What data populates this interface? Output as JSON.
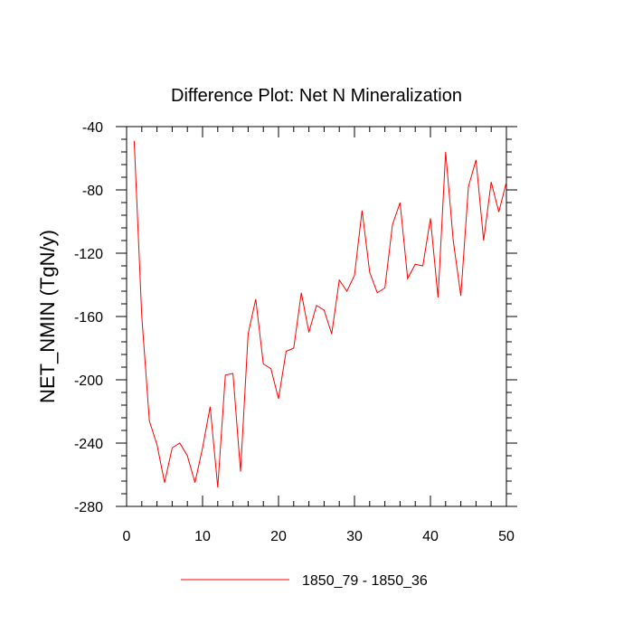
{
  "chart_data": {
    "type": "line",
    "title": "Difference Plot: Net N Mineralization",
    "xlabel": "",
    "ylabel": "NET_NMIN  (TgN/y)",
    "xlim": [
      0,
      50
    ],
    "ylim": [
      -280,
      -40
    ],
    "x_ticks": [
      0,
      10,
      20,
      30,
      40,
      50
    ],
    "y_ticks": [
      -280,
      -240,
      -200,
      -160,
      -120,
      -80,
      -40
    ],
    "x_tick_labels": [
      "0",
      "10",
      "20",
      "30",
      "40",
      "50"
    ],
    "y_tick_labels": [
      "-280",
      "-240",
      "-200",
      "-160",
      "-120",
      "-80",
      "-40"
    ],
    "legend_position": "bottom-center",
    "series": [
      {
        "name": "1850_79 - 1850_36",
        "color": "#ff0000",
        "x": [
          1,
          2,
          3,
          4,
          5,
          6,
          7,
          8,
          9,
          10,
          11,
          12,
          13,
          14,
          15,
          16,
          17,
          18,
          19,
          20,
          21,
          22,
          23,
          24,
          25,
          26,
          27,
          28,
          29,
          30,
          31,
          32,
          33,
          34,
          35,
          36,
          37,
          38,
          39,
          40,
          41,
          42,
          43,
          44,
          45,
          46,
          47,
          48,
          49,
          50
        ],
        "values": [
          -49,
          -160,
          -226,
          -241,
          -265,
          -243,
          -240,
          -248,
          -265,
          -243,
          -217,
          -268,
          -197,
          -196,
          -258,
          -171,
          -149,
          -190,
          -193,
          -212,
          -182,
          -180,
          -145,
          -170,
          -153,
          -156,
          -171,
          -137,
          -144,
          -134,
          -93,
          -132,
          -145,
          -142,
          -102,
          -88,
          -136,
          -127,
          -128,
          -98,
          -148,
          -56,
          -112,
          -147,
          -78,
          -61,
          -112,
          -75,
          -94,
          -75
        ]
      }
    ]
  }
}
